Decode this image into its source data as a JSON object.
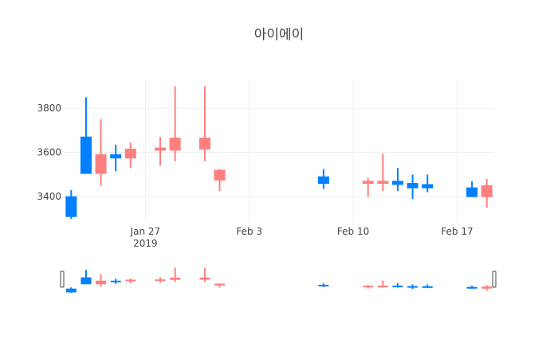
{
  "chart_data": {
    "type": "candlestick",
    "title": "아이에이",
    "xlabel": "",
    "ylabel": "",
    "ylim": [
      3300,
      3930
    ],
    "grid": true,
    "legend": "none",
    "has_range_slider": true,
    "colors": {
      "increasing": "#ff7f7f",
      "decreasing": "#0080ff",
      "background": "#ffffff",
      "grid": "#eeeeee",
      "text": "#444444"
    },
    "x_ticks": [
      {
        "date": "2019-01-27",
        "label": "Jan 27",
        "sublabel": "2019"
      },
      {
        "date": "2019-02-03",
        "label": "Feb 3",
        "sublabel": ""
      },
      {
        "date": "2019-02-10",
        "label": "Feb 10",
        "sublabel": ""
      },
      {
        "date": "2019-02-17",
        "label": "Feb 17",
        "sublabel": ""
      }
    ],
    "y_ticks": [
      3400,
      3600,
      3800
    ],
    "x_range": [
      "2019-01-21T12:00:00",
      "2019-02-19T12:00:00"
    ],
    "series": [
      {
        "date": "2019-01-22",
        "open": 3400,
        "high": 3430,
        "low": 3300,
        "close": 3310
      },
      {
        "date": "2019-01-23",
        "open": 3670,
        "high": 3850,
        "low": 3505,
        "close": 3505
      },
      {
        "date": "2019-01-24",
        "open": 3505,
        "high": 3750,
        "low": 3450,
        "close": 3590
      },
      {
        "date": "2019-01-25",
        "open": 3590,
        "high": 3635,
        "low": 3515,
        "close": 3575
      },
      {
        "date": "2019-01-26",
        "open": 3575,
        "high": 3645,
        "low": 3530,
        "close": 3615
      },
      {
        "date": "2019-01-28",
        "open": 3610,
        "high": 3670,
        "low": 3540,
        "close": 3620
      },
      {
        "date": "2019-01-29",
        "open": 3610,
        "high": 3900,
        "low": 3560,
        "close": 3665
      },
      {
        "date": "2019-01-31",
        "open": 3615,
        "high": 3900,
        "low": 3560,
        "close": 3665
      },
      {
        "date": "2019-02-01",
        "open": 3475,
        "high": 3525,
        "low": 3425,
        "close": 3520
      },
      {
        "date": "2019-02-08",
        "open": 3490,
        "high": 3525,
        "low": 3435,
        "close": 3460
      },
      {
        "date": "2019-02-11",
        "open": 3460,
        "high": 3485,
        "low": 3400,
        "close": 3470
      },
      {
        "date": "2019-02-12",
        "open": 3460,
        "high": 3595,
        "low": 3425,
        "close": 3470
      },
      {
        "date": "2019-02-13",
        "open": 3470,
        "high": 3530,
        "low": 3425,
        "close": 3455
      },
      {
        "date": "2019-02-14",
        "open": 3460,
        "high": 3500,
        "low": 3390,
        "close": 3440
      },
      {
        "date": "2019-02-15",
        "open": 3455,
        "high": 3500,
        "low": 3420,
        "close": 3440
      },
      {
        "date": "2019-02-18",
        "open": 3440,
        "high": 3470,
        "low": 3400,
        "close": 3400
      },
      {
        "date": "2019-02-19",
        "open": 3400,
        "high": 3480,
        "low": 3350,
        "close": 3450
      }
    ]
  }
}
